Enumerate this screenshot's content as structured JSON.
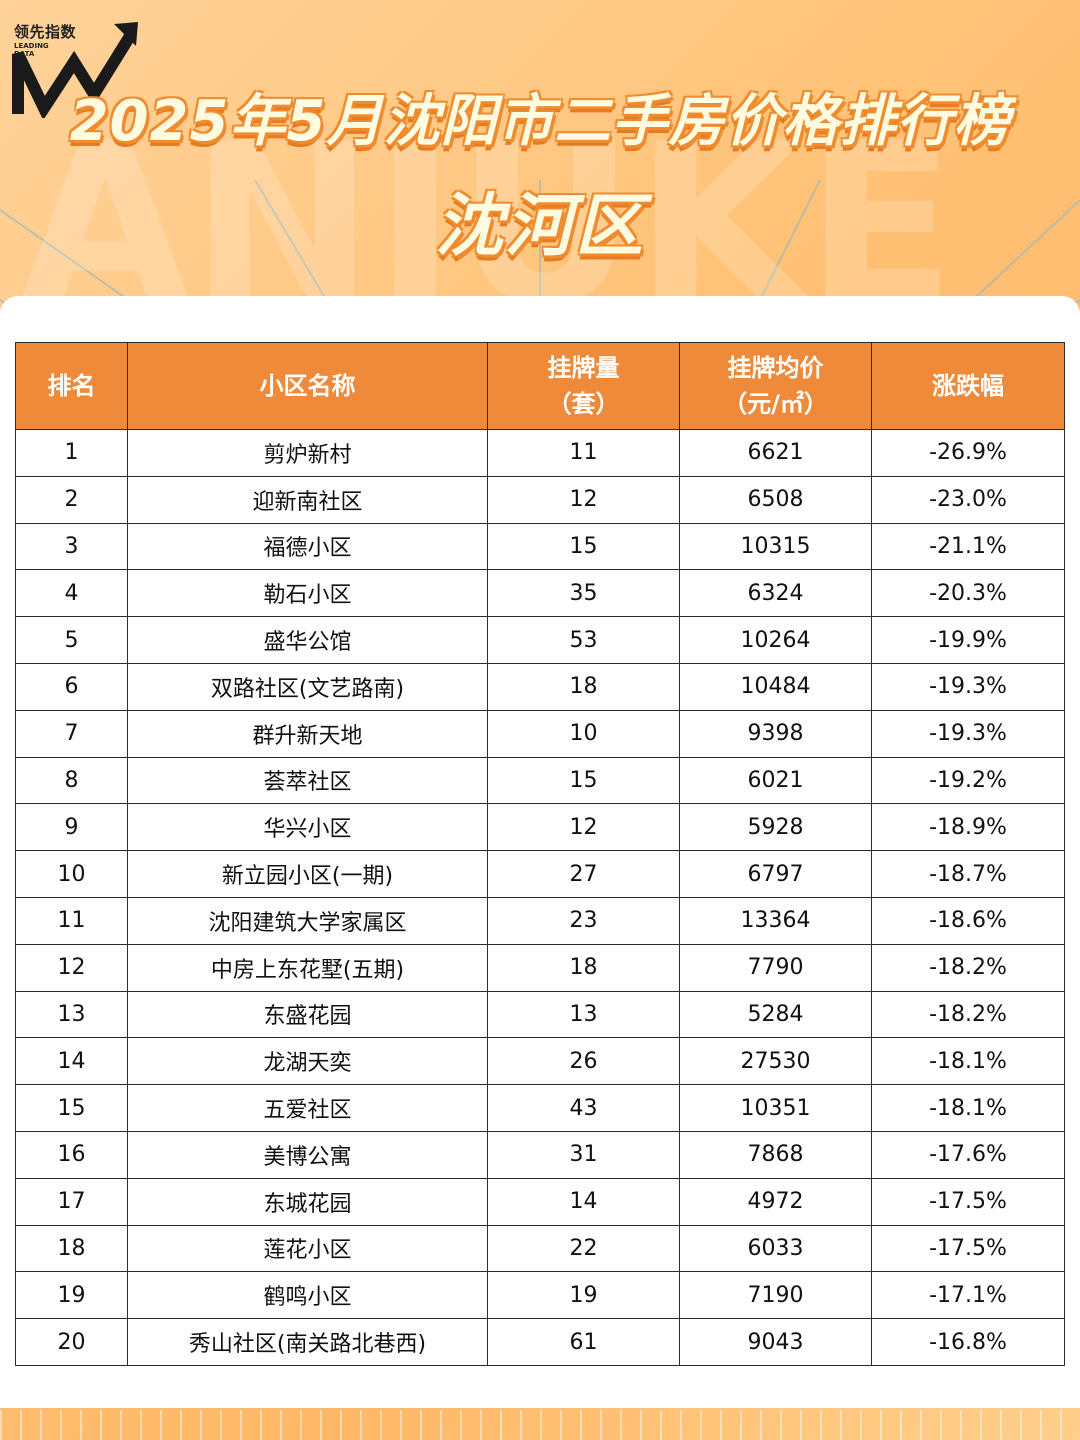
{
  "logo": {
    "text": "领先指数",
    "sub": "LEADING DATA"
  },
  "header": {
    "title": "2025年5月沈阳市二手房价格排行榜",
    "district": "沈河区"
  },
  "table": {
    "headers": {
      "rank": "排名",
      "name": "小区名称",
      "count_line1": "挂牌量",
      "count_line2": "（套）",
      "price_line1": "挂牌均价",
      "price_line2": "（元/㎡）",
      "change": "涨跌幅"
    },
    "rows": [
      {
        "rank": "1",
        "name": "剪炉新村",
        "count": "11",
        "price": "6621",
        "change": "-26.9%"
      },
      {
        "rank": "2",
        "name": "迎新南社区",
        "count": "12",
        "price": "6508",
        "change": "-23.0%"
      },
      {
        "rank": "3",
        "name": "福德小区",
        "count": "15",
        "price": "10315",
        "change": "-21.1%"
      },
      {
        "rank": "4",
        "name": "勒石小区",
        "count": "35",
        "price": "6324",
        "change": "-20.3%"
      },
      {
        "rank": "5",
        "name": "盛华公馆",
        "count": "53",
        "price": "10264",
        "change": "-19.9%"
      },
      {
        "rank": "6",
        "name": "双路社区(文艺路南)",
        "count": "18",
        "price": "10484",
        "change": "-19.3%"
      },
      {
        "rank": "7",
        "name": "群升新天地",
        "count": "10",
        "price": "9398",
        "change": "-19.3%"
      },
      {
        "rank": "8",
        "name": "荟萃社区",
        "count": "15",
        "price": "6021",
        "change": "-19.2%"
      },
      {
        "rank": "9",
        "name": "华兴小区",
        "count": "12",
        "price": "5928",
        "change": "-18.9%"
      },
      {
        "rank": "10",
        "name": "新立园小区(一期)",
        "count": "27",
        "price": "6797",
        "change": "-18.7%"
      },
      {
        "rank": "11",
        "name": "沈阳建筑大学家属区",
        "count": "23",
        "price": "13364",
        "change": "-18.6%"
      },
      {
        "rank": "12",
        "name": "中房上东花墅(五期)",
        "count": "18",
        "price": "7790",
        "change": "-18.2%"
      },
      {
        "rank": "13",
        "name": "东盛花园",
        "count": "13",
        "price": "5284",
        "change": "-18.2%"
      },
      {
        "rank": "14",
        "name": "龙湖天奕",
        "count": "26",
        "price": "27530",
        "change": "-18.1%"
      },
      {
        "rank": "15",
        "name": "五爱社区",
        "count": "43",
        "price": "10351",
        "change": "-18.1%"
      },
      {
        "rank": "16",
        "name": "美博公寓",
        "count": "31",
        "price": "7868",
        "change": "-17.6%"
      },
      {
        "rank": "17",
        "name": "东城花园",
        "count": "14",
        "price": "4972",
        "change": "-17.5%"
      },
      {
        "rank": "18",
        "name": "莲花小区",
        "count": "22",
        "price": "6033",
        "change": "-17.5%"
      },
      {
        "rank": "19",
        "name": "鹤鸣小区",
        "count": "19",
        "price": "7190",
        "change": "-17.1%"
      },
      {
        "rank": "20",
        "name": "秀山社区(南关路北巷西)",
        "count": "61",
        "price": "9043",
        "change": "-16.8%"
      }
    ]
  },
  "colors": {
    "header_bg": "#ef8a3a",
    "title_fill": "#fffbe0",
    "title_outline": "#f08b2e"
  }
}
